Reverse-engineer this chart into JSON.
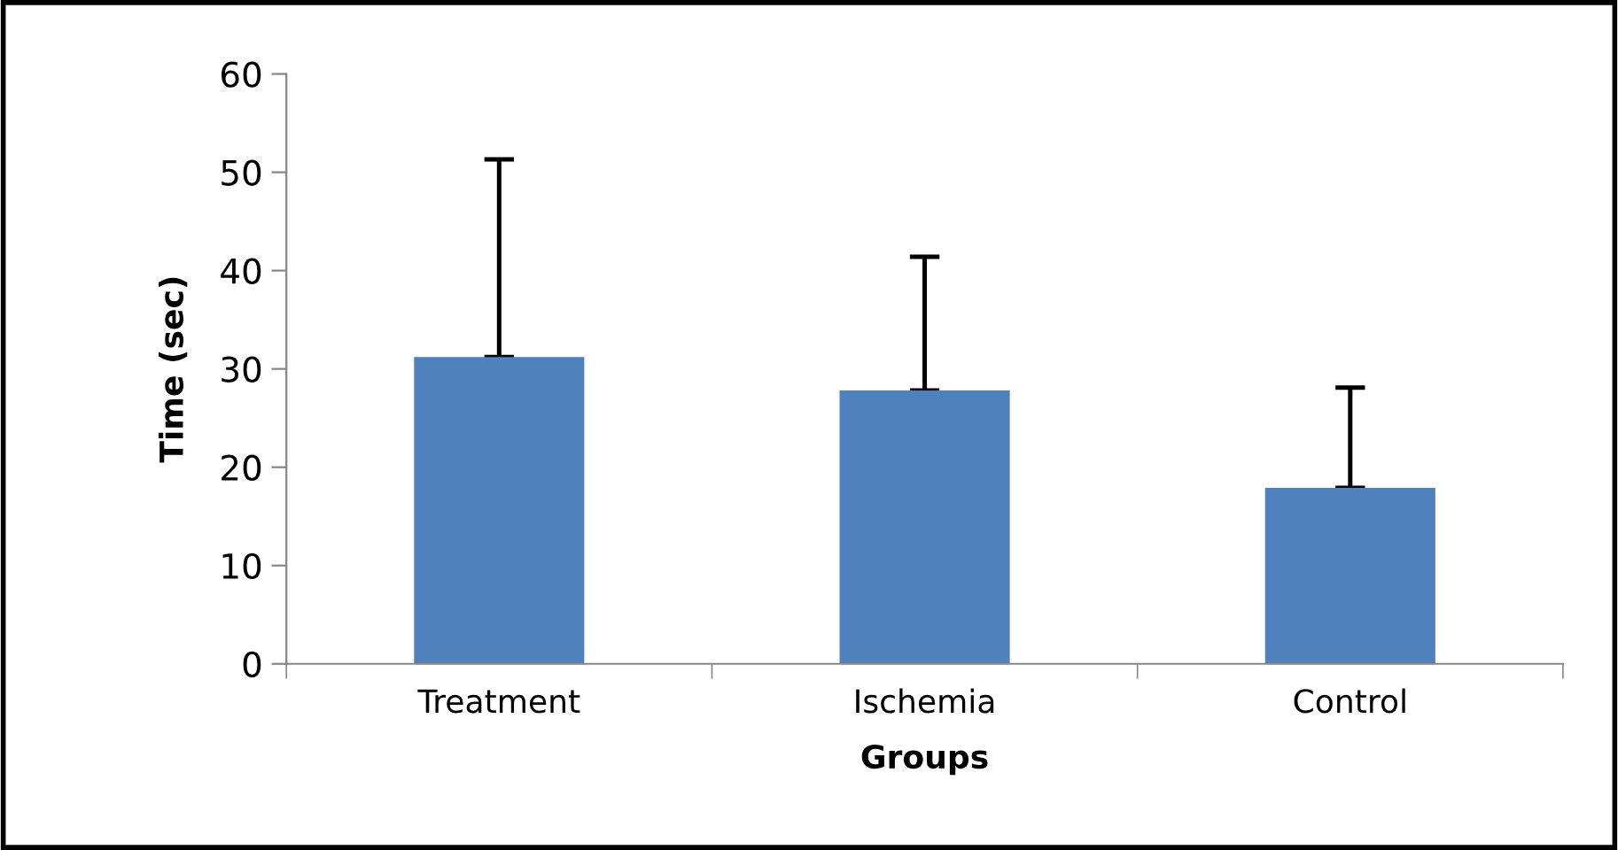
{
  "chart_data": {
    "type": "bar",
    "xlabel": "Groups",
    "ylabel": "Time (sec)",
    "categories": [
      "Treatment",
      "Ischemia",
      "Control"
    ],
    "values": [
      31.2,
      27.8,
      17.9
    ],
    "errors": [
      [
        31.2,
        51.3
      ],
      [
        27.8,
        41.4
      ],
      [
        17.9,
        28.1
      ]
    ],
    "color": "#4f81bd",
    "ylim": [
      0,
      60
    ],
    "yticks": [
      0,
      10,
      20,
      30,
      40,
      50,
      60
    ],
    "grid": false,
    "legend": false
  }
}
